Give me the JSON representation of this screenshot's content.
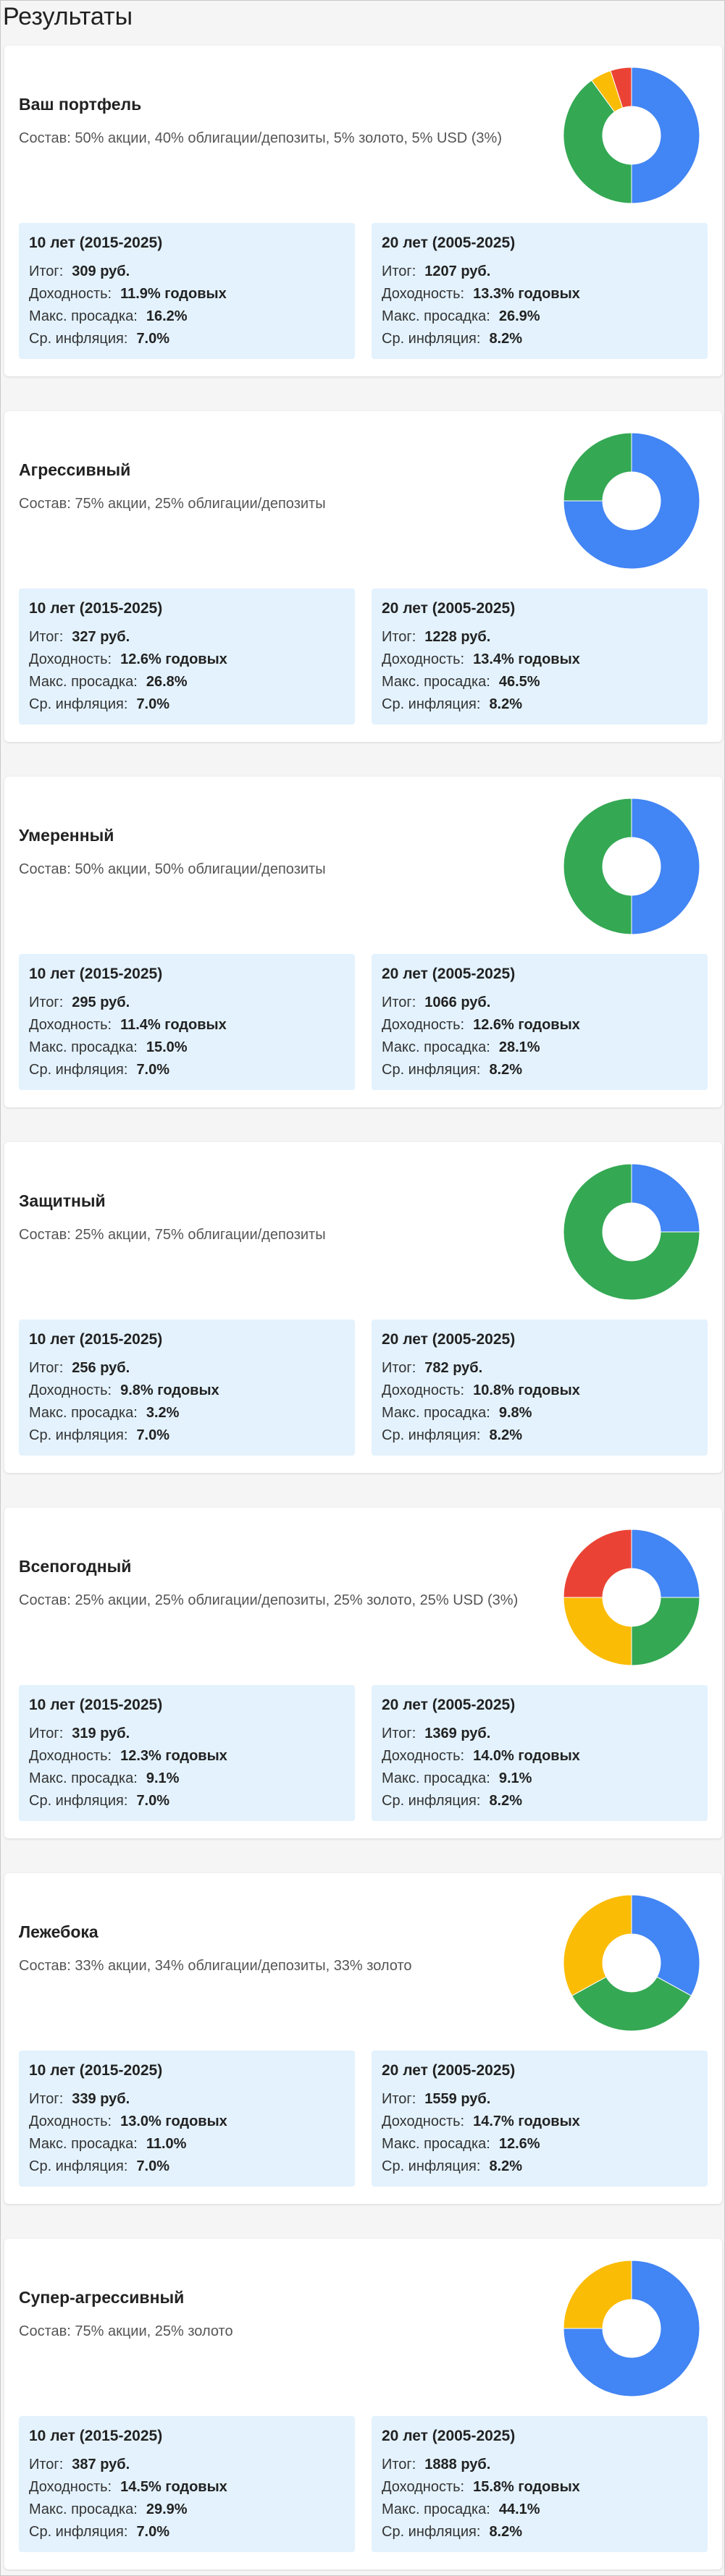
{
  "page_title": "Результаты",
  "labels": {
    "result": "Итог:",
    "return": "Доходность:",
    "drawdown": "Макс. просадка:",
    "inflation": "Ср. инфляция:"
  },
  "colors": {
    "stocks": "#4285f4",
    "bonds": "#34a853",
    "gold": "#fbbc05",
    "usd": "#ea4335"
  },
  "portfolios": [
    {
      "name": "Ваш портфель",
      "description": "Состав: 50% акции, 40% облигации/депозиты, 5% золото, 5% USD (3%)",
      "allocation": [
        50,
        40,
        5,
        5
      ],
      "p10": {
        "title": "10 лет (2015-2025)",
        "result": "309 руб.",
        "return": "11.9% годовых",
        "drawdown": "16.2%",
        "inflation": "7.0%"
      },
      "p20": {
        "title": "20 лет (2005-2025)",
        "result": "1207 руб.",
        "return": "13.3% годовых",
        "drawdown": "26.9%",
        "inflation": "8.2%"
      }
    },
    {
      "name": "Агрессивный",
      "description": "Состав: 75% акции, 25% облигации/депозиты",
      "allocation": [
        75,
        25,
        0,
        0
      ],
      "p10": {
        "title": "10 лет (2015-2025)",
        "result": "327 руб.",
        "return": "12.6% годовых",
        "drawdown": "26.8%",
        "inflation": "7.0%"
      },
      "p20": {
        "title": "20 лет (2005-2025)",
        "result": "1228 руб.",
        "return": "13.4% годовых",
        "drawdown": "46.5%",
        "inflation": "8.2%"
      }
    },
    {
      "name": "Умеренный",
      "description": "Состав: 50% акции, 50% облигации/депозиты",
      "allocation": [
        50,
        50,
        0,
        0
      ],
      "p10": {
        "title": "10 лет (2015-2025)",
        "result": "295 руб.",
        "return": "11.4% годовых",
        "drawdown": "15.0%",
        "inflation": "7.0%"
      },
      "p20": {
        "title": "20 лет (2005-2025)",
        "result": "1066 руб.",
        "return": "12.6% годовых",
        "drawdown": "28.1%",
        "inflation": "8.2%"
      }
    },
    {
      "name": "Защитный",
      "description": "Состав: 25% акции, 75% облигации/депозиты",
      "allocation": [
        25,
        75,
        0,
        0
      ],
      "p10": {
        "title": "10 лет (2015-2025)",
        "result": "256 руб.",
        "return": "9.8% годовых",
        "drawdown": "3.2%",
        "inflation": "7.0%"
      },
      "p20": {
        "title": "20 лет (2005-2025)",
        "result": "782 руб.",
        "return": "10.8% годовых",
        "drawdown": "9.8%",
        "inflation": "8.2%"
      }
    },
    {
      "name": "Всепогодный",
      "description": "Состав: 25% акции, 25% облигации/депозиты, 25% золото, 25% USD (3%)",
      "allocation": [
        25,
        25,
        25,
        25
      ],
      "p10": {
        "title": "10 лет (2015-2025)",
        "result": "319 руб.",
        "return": "12.3% годовых",
        "drawdown": "9.1%",
        "inflation": "7.0%"
      },
      "p20": {
        "title": "20 лет (2005-2025)",
        "result": "1369 руб.",
        "return": "14.0% годовых",
        "drawdown": "9.1%",
        "inflation": "8.2%"
      }
    },
    {
      "name": "Лежебока",
      "description": "Состав: 33% акции, 34% облигации/депозиты, 33% золото",
      "allocation": [
        33,
        34,
        33,
        0
      ],
      "p10": {
        "title": "10 лет (2015-2025)",
        "result": "339 руб.",
        "return": "13.0% годовых",
        "drawdown": "11.0%",
        "inflation": "7.0%"
      },
      "p20": {
        "title": "20 лет (2005-2025)",
        "result": "1559 руб.",
        "return": "14.7% годовых",
        "drawdown": "12.6%",
        "inflation": "8.2%"
      }
    },
    {
      "name": "Супер-агрессивный",
      "description": "Состав: 75% акции, 25% золото",
      "allocation": [
        75,
        0,
        25,
        0
      ],
      "p10": {
        "title": "10 лет (2015-2025)",
        "result": "387 руб.",
        "return": "14.5% годовых",
        "drawdown": "29.9%",
        "inflation": "7.0%"
      },
      "p20": {
        "title": "20 лет (2005-2025)",
        "result": "1888 руб.",
        "return": "15.8% годовых",
        "drawdown": "44.1%",
        "inflation": "8.2%"
      }
    }
  ]
}
